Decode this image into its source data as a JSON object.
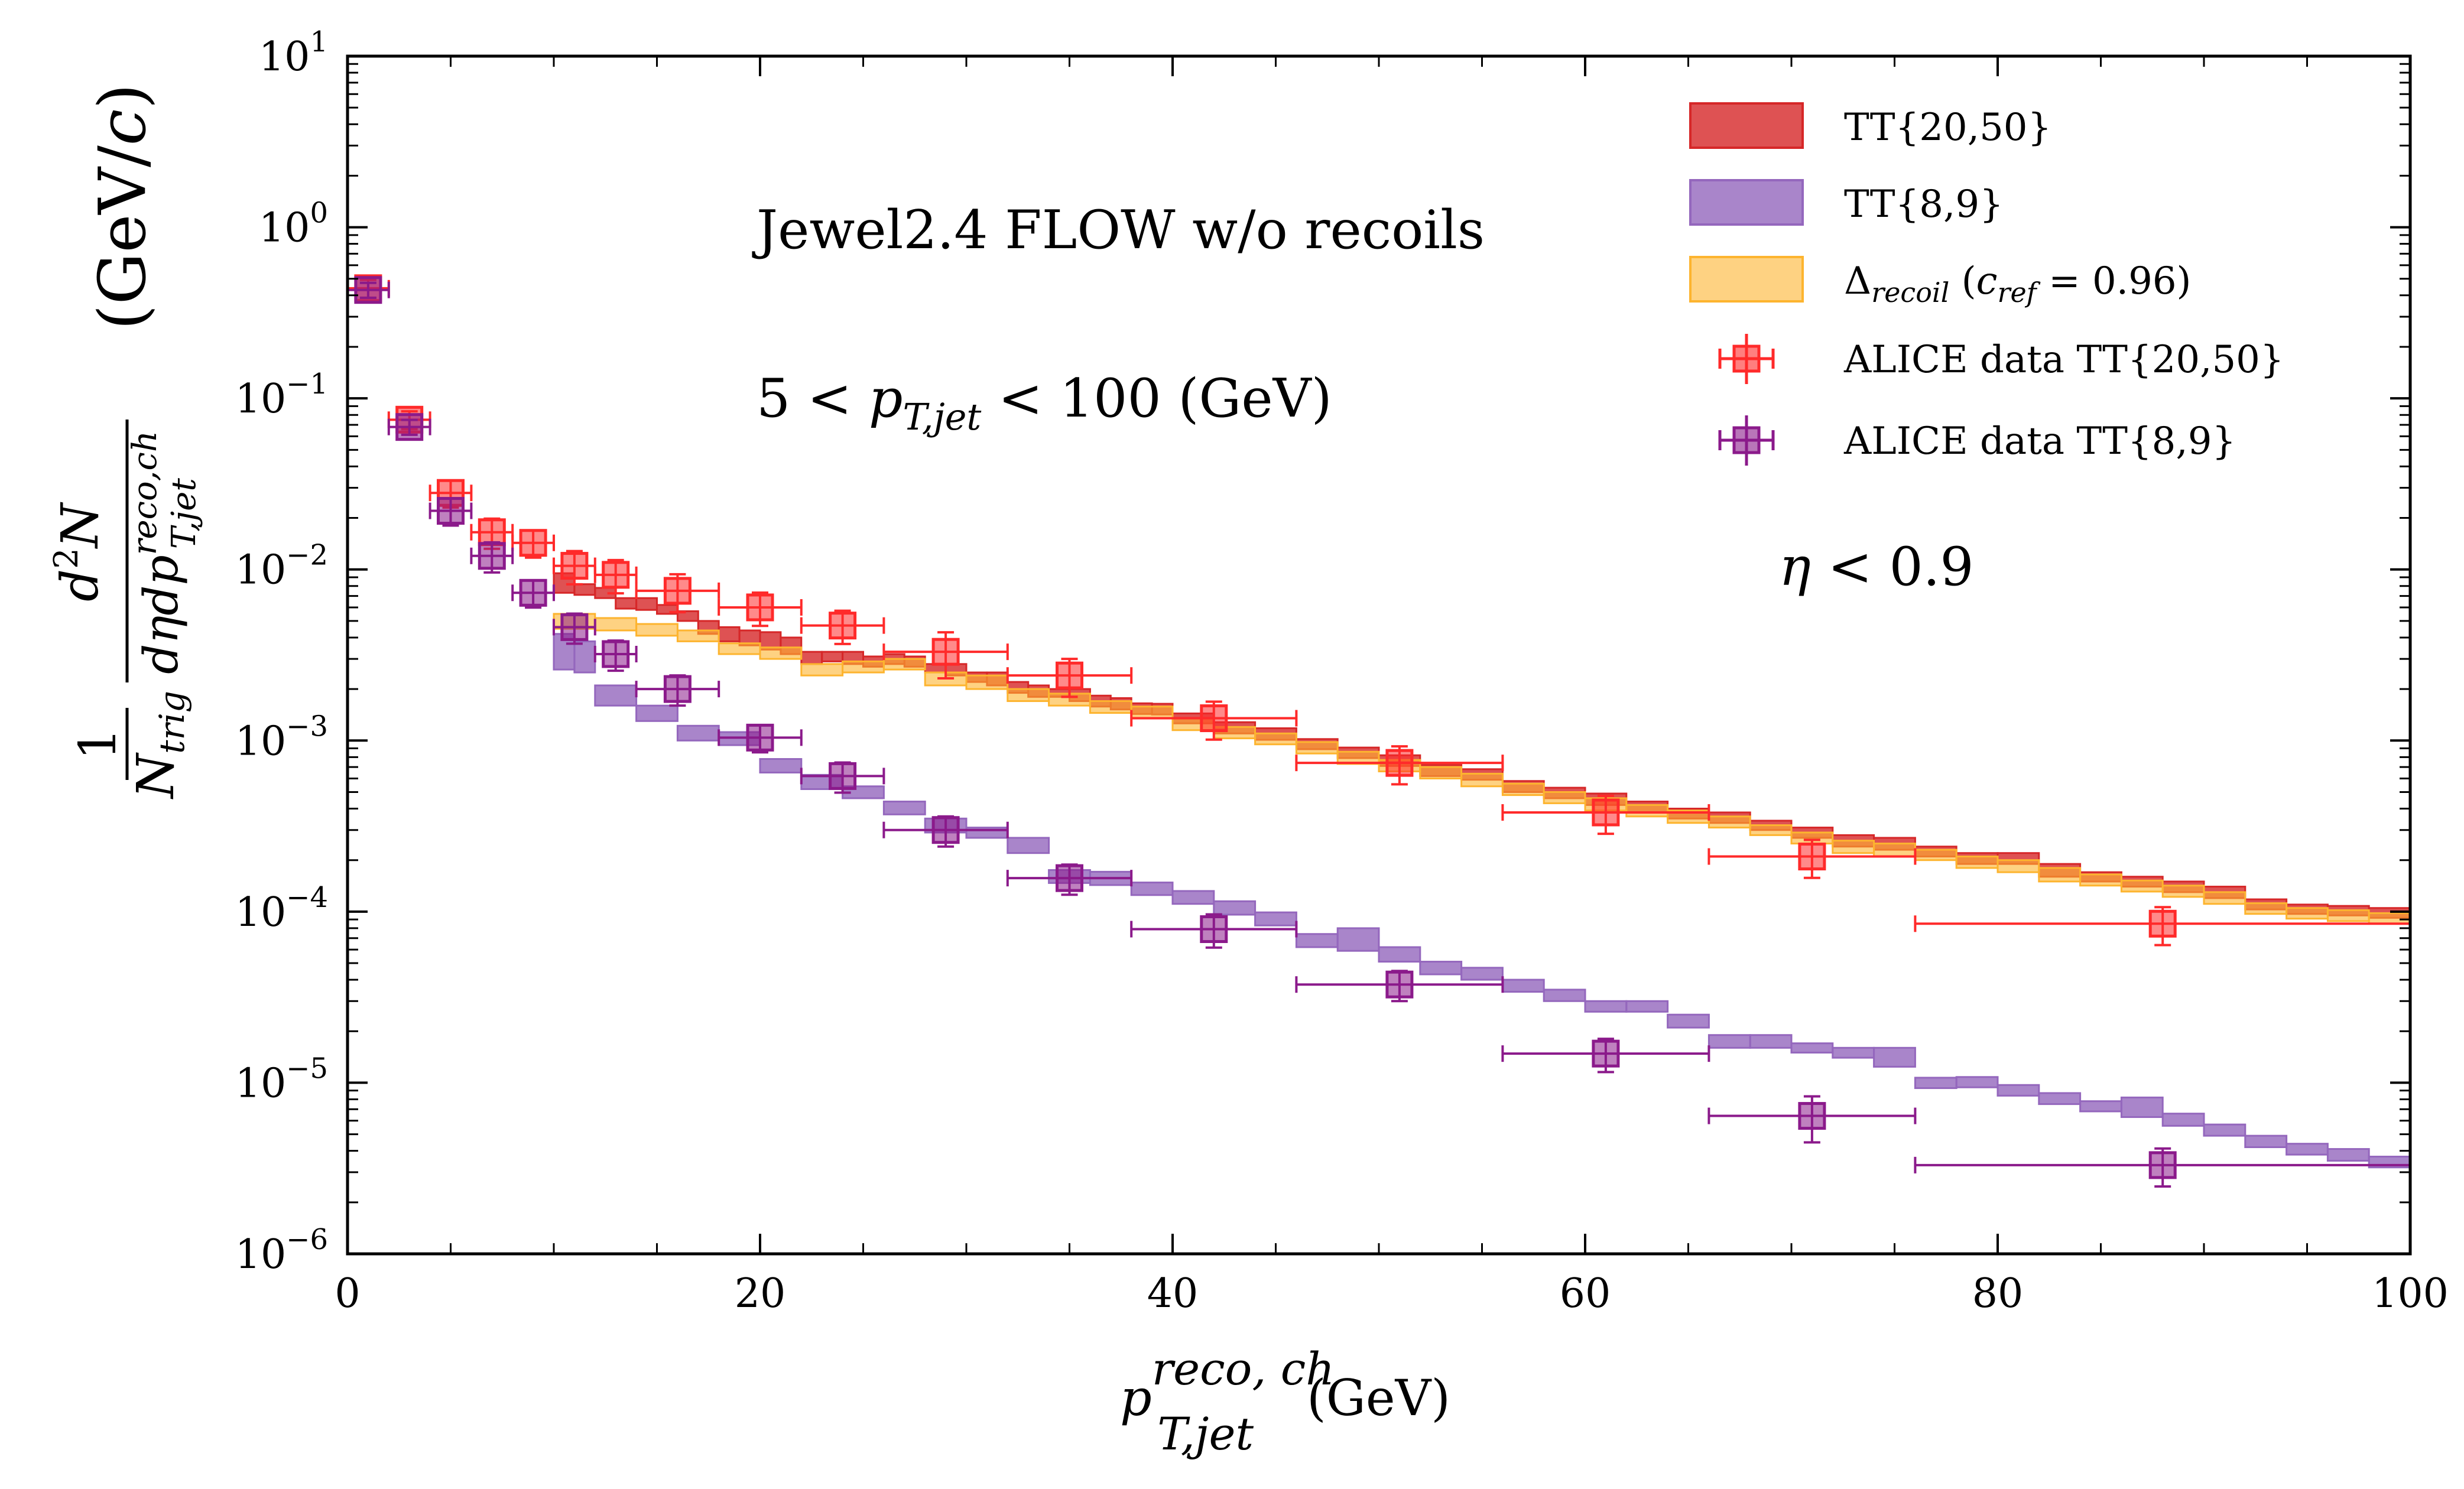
{
  "chart_data": {
    "type": "step-band-with-errorbars",
    "xlabel": "p_T,jet^reco,ch (GeV)",
    "ylabel": "1/N_trig d²N/(dη dp_T,jet^reco,ch) (GeV/c)",
    "xlim": [
      0,
      100
    ],
    "ylim": [
      1e-06,
      10
    ],
    "yscale": "log",
    "xticks": [
      "0",
      "20",
      "40",
      "60",
      "80",
      "100"
    ],
    "yticks": [
      "10^-6",
      "10^-5",
      "10^-4",
      "10^-3",
      "10^-2",
      "10^-1",
      "10^0",
      "10^1"
    ],
    "legend_position": "top-right",
    "annotations": [
      "Jewel2.4 FLOW w/o recoils",
      "5 < p_T,jet < 100 (GeV)",
      "η < 0.9"
    ],
    "bands": [
      {
        "name": "TT{20,50}",
        "color": "#d62728",
        "bins": [
          [
            10,
            11,
            0.0095,
            0.0073
          ],
          [
            11,
            12,
            0.0082,
            0.0071
          ],
          [
            12,
            13,
            0.0078,
            0.0068
          ],
          [
            13,
            14,
            0.0068,
            0.0059
          ],
          [
            14,
            15,
            0.0068,
            0.0058
          ],
          [
            15,
            16,
            0.0062,
            0.0055
          ],
          [
            16,
            17,
            0.0057,
            0.005
          ],
          [
            17,
            18,
            0.005,
            0.0042
          ],
          [
            18,
            19,
            0.0046,
            0.0038
          ],
          [
            19,
            20,
            0.0044,
            0.0036
          ],
          [
            20,
            21,
            0.0043,
            0.0034
          ],
          [
            21,
            22,
            0.004,
            0.0032
          ],
          [
            22,
            23,
            0.0033,
            0.0028
          ],
          [
            23,
            24,
            0.0033,
            0.0029
          ],
          [
            24,
            25,
            0.0033,
            0.0028
          ],
          [
            25,
            26,
            0.0031,
            0.0027
          ],
          [
            26,
            27,
            0.0032,
            0.0028
          ],
          [
            27,
            28,
            0.0031,
            0.0027
          ],
          [
            28,
            29,
            0.0028,
            0.0025
          ],
          [
            29,
            30,
            0.0028,
            0.0024
          ],
          [
            30,
            31,
            0.0025,
            0.0022
          ],
          [
            31,
            32,
            0.0025,
            0.0021
          ],
          [
            32,
            33,
            0.0022,
            0.0019
          ],
          [
            33,
            34,
            0.0021,
            0.0018
          ],
          [
            34,
            35,
            0.002,
            0.0018
          ],
          [
            35,
            36,
            0.002,
            0.0017
          ],
          [
            36,
            37,
            0.00183,
            0.00158
          ],
          [
            37,
            38,
            0.00177,
            0.00152
          ],
          [
            38,
            39,
            0.00165,
            0.00143
          ],
          [
            39,
            40,
            0.00164,
            0.00142
          ],
          [
            40,
            42,
            0.00144,
            0.00126
          ],
          [
            42,
            44,
            0.00128,
            0.0011
          ],
          [
            44,
            46,
            0.00118,
            0.00101
          ],
          [
            46,
            48,
            0.00102,
            0.00089
          ],
          [
            48,
            50,
            0.00091,
            0.00079
          ],
          [
            50,
            52,
            0.00082,
            0.00071
          ],
          [
            52,
            54,
            0.00072,
            0.00062
          ],
          [
            54,
            56,
            0.00068,
            0.00059
          ],
          [
            56,
            58,
            0.00058,
            0.0005
          ],
          [
            58,
            60,
            0.00053,
            0.00046
          ],
          [
            60,
            62,
            0.00049,
            0.00042
          ],
          [
            62,
            64,
            0.00044,
            0.00038
          ],
          [
            64,
            66,
            0.0004,
            0.00035
          ],
          [
            66,
            68,
            0.00038,
            0.00033
          ],
          [
            68,
            70,
            0.00034,
            0.0003
          ],
          [
            70,
            72,
            0.00031,
            0.00027
          ],
          [
            72,
            74,
            0.00028,
            0.00024
          ],
          [
            74,
            76,
            0.00027,
            0.00023
          ],
          [
            76,
            78,
            0.00024,
            0.00021
          ],
          [
            78,
            80,
            0.00022,
            0.00019
          ],
          [
            80,
            82,
            0.00022,
            0.00019
          ],
          [
            82,
            84,
            0.00019,
            0.00016
          ],
          [
            84,
            86,
            0.00017,
            0.00015
          ],
          [
            86,
            88,
            0.00016,
            0.00014
          ],
          [
            88,
            90,
            0.00015,
            0.00013
          ],
          [
            90,
            92,
            0.00014,
            0.00012
          ],
          [
            92,
            94,
            0.000118,
            0.000103
          ],
          [
            94,
            96,
            0.00011,
            9.7e-05
          ],
          [
            96,
            98,
            0.000108,
            9.5e-05
          ],
          [
            98,
            100,
            0.000105,
            9.2e-05
          ]
        ]
      },
      {
        "name": "TT{8,9}",
        "color": "#9467bd",
        "bins": [
          [
            10,
            11,
            0.0042,
            0.0026
          ],
          [
            11,
            12,
            0.0038,
            0.0025
          ],
          [
            12,
            14,
            0.0021,
            0.0016
          ],
          [
            14,
            16,
            0.0016,
            0.0013
          ],
          [
            16,
            18,
            0.00122,
            0.001
          ],
          [
            18,
            20,
            0.00112,
            0.00094
          ],
          [
            20,
            22,
            0.00078,
            0.00065
          ],
          [
            22,
            24,
            0.00063,
            0.00052
          ],
          [
            24,
            26,
            0.00054,
            0.00046
          ],
          [
            26,
            28,
            0.00044,
            0.00037
          ],
          [
            28,
            30,
            0.00035,
            0.00029
          ],
          [
            30,
            32,
            0.00031,
            0.00027
          ],
          [
            32,
            34,
            0.00027,
            0.00022
          ],
          [
            34,
            36,
            0.000175,
            0.000147
          ],
          [
            36,
            38,
            0.000171,
            0.000143
          ],
          [
            38,
            40,
            0.000148,
            0.000125
          ],
          [
            40,
            42,
            0.000132,
            0.000111
          ],
          [
            42,
            44,
            0.000115,
            9.6e-05
          ],
          [
            44,
            46,
            9.9e-05,
            8.3e-05
          ],
          [
            46,
            48,
            7.4e-05,
            6.2e-05
          ],
          [
            48,
            50,
            8e-05,
            5.9e-05
          ],
          [
            50,
            52,
            6.2e-05,
            5.1e-05
          ],
          [
            52,
            54,
            5.1e-05,
            4.3e-05
          ],
          [
            54,
            56,
            4.7e-05,
            4e-05
          ],
          [
            56,
            58,
            4e-05,
            3.4e-05
          ],
          [
            58,
            60,
            3.5e-05,
            3e-05
          ],
          [
            60,
            62,
            3e-05,
            2.6e-05
          ],
          [
            62,
            64,
            3e-05,
            2.6e-05
          ],
          [
            64,
            66,
            2.5e-05,
            2.1e-05
          ],
          [
            66,
            68,
            1.9e-05,
            1.6e-05
          ],
          [
            68,
            70,
            1.9e-05,
            1.6e-05
          ],
          [
            70,
            72,
            1.7e-05,
            1.5e-05
          ],
          [
            72,
            74,
            1.6e-05,
            1.4e-05
          ],
          [
            74,
            76,
            1.6e-05,
            1.24e-05
          ],
          [
            76,
            78,
            1.07e-05,
            9.3e-06
          ],
          [
            78,
            80,
            1.08e-05,
            9.4e-06
          ],
          [
            80,
            82,
            9.7e-06,
            8.4e-06
          ],
          [
            82,
            84,
            8.7e-06,
            7.5e-06
          ],
          [
            84,
            86,
            7.8e-06,
            6.8e-06
          ],
          [
            86,
            88,
            8.2e-06,
            6.3e-06
          ],
          [
            88,
            90,
            6.6e-06,
            5.6e-06
          ],
          [
            90,
            92,
            5.7e-06,
            4.9e-06
          ],
          [
            92,
            94,
            4.9e-06,
            4.2e-06
          ],
          [
            94,
            96,
            4.4e-06,
            3.8e-06
          ],
          [
            96,
            98,
            4.1e-06,
            3.5e-06
          ],
          [
            98,
            100,
            3.7e-06,
            3.2e-06
          ]
        ]
      },
      {
        "name": "Δ_recoil (c_ref = 0.96)",
        "color": "#fdb42f",
        "bins": [
          [
            10,
            12,
            0.0055,
            0.0045
          ],
          [
            12,
            14,
            0.0052,
            0.0044
          ],
          [
            14,
            16,
            0.0048,
            0.0041
          ],
          [
            16,
            18,
            0.0044,
            0.0038
          ],
          [
            18,
            20,
            0.0037,
            0.0032
          ],
          [
            20,
            22,
            0.0035,
            0.003
          ],
          [
            22,
            24,
            0.0028,
            0.0024
          ],
          [
            24,
            26,
            0.0029,
            0.0025
          ],
          [
            26,
            28,
            0.003,
            0.0026
          ],
          [
            28,
            30,
            0.0025,
            0.0021
          ],
          [
            30,
            32,
            0.0024,
            0.002
          ],
          [
            32,
            34,
            0.002,
            0.0017
          ],
          [
            34,
            36,
            0.00188,
            0.0016
          ],
          [
            36,
            38,
            0.0017,
            0.00145
          ],
          [
            38,
            40,
            0.00158,
            0.00135
          ],
          [
            40,
            42,
            0.00135,
            0.00115
          ],
          [
            42,
            44,
            0.0012,
            0.00103
          ],
          [
            44,
            46,
            0.0011,
            0.00095
          ],
          [
            46,
            48,
            0.00098,
            0.00084
          ],
          [
            48,
            50,
            0.00086,
            0.00073
          ],
          [
            50,
            52,
            0.00077,
            0.00066
          ],
          [
            52,
            54,
            0.0007,
            0.0006
          ],
          [
            54,
            56,
            0.00064,
            0.00054
          ],
          [
            56,
            58,
            0.00056,
            0.00048
          ],
          [
            58,
            60,
            0.0005,
            0.00043
          ],
          [
            60,
            62,
            0.00046,
            0.00039
          ],
          [
            62,
            64,
            0.00042,
            0.00036
          ],
          [
            64,
            66,
            0.00039,
            0.00033
          ],
          [
            66,
            68,
            0.00036,
            0.00031
          ],
          [
            68,
            70,
            0.00032,
            0.00028
          ],
          [
            70,
            72,
            0.00029,
            0.00025
          ],
          [
            72,
            74,
            0.00026,
            0.00022
          ],
          [
            74,
            76,
            0.00025,
            0.00021
          ],
          [
            76,
            78,
            0.00023,
            0.0002
          ],
          [
            78,
            80,
            0.00021,
            0.00018
          ],
          [
            80,
            82,
            0.0002,
            0.00017
          ],
          [
            82,
            84,
            0.00018,
            0.00015
          ],
          [
            84,
            86,
            0.000165,
            0.000142
          ],
          [
            86,
            88,
            0.000152,
            0.000131
          ],
          [
            88,
            90,
            0.000142,
            0.000122
          ],
          [
            90,
            92,
            0.00013,
            0.000111
          ],
          [
            92,
            94,
            0.000112,
            9.7e-05
          ],
          [
            94,
            96,
            0.000105,
            9.1e-05
          ],
          [
            96,
            98,
            0.000102,
            8.8e-05
          ],
          [
            98,
            100,
            9.8e-05,
            8.5e-05
          ]
        ]
      }
    ],
    "points": [
      {
        "name": "ALICE data TT{20,50}",
        "color": "#ff2a2a",
        "x": [
          1,
          3,
          5,
          7,
          9,
          11,
          13,
          16,
          20,
          24,
          29,
          35,
          42,
          51,
          61,
          71,
          88
        ],
        "xlo": [
          0,
          2,
          4,
          6,
          8,
          10,
          12,
          14,
          18,
          22,
          26,
          32,
          38,
          46,
          56,
          66,
          76
        ],
        "xhi": [
          2,
          4,
          6,
          8,
          10,
          12,
          14,
          18,
          22,
          26,
          32,
          38,
          46,
          56,
          66,
          76,
          100
        ],
        "y": [
          0.44,
          0.075,
          0.028,
          0.0165,
          0.0143,
          0.0105,
          0.0093,
          0.0075,
          0.006,
          0.0047,
          0.0033,
          0.0024,
          0.00135,
          0.00074,
          0.00038,
          0.00021,
          8.5e-05
        ],
        "yerr_rel": [
          0.12,
          0.12,
          0.18,
          0.2,
          0.18,
          0.22,
          0.22,
          0.25,
          0.22,
          0.22,
          0.3,
          0.25,
          0.25,
          0.25,
          0.25,
          0.25,
          0.25
        ]
      },
      {
        "name": "ALICE data TT{8,9}",
        "color": "#8b1a8b",
        "x": [
          1,
          3,
          5,
          7,
          9,
          11,
          13,
          16,
          20,
          24,
          29,
          35,
          42,
          51,
          61,
          71,
          88
        ],
        "xlo": [
          0,
          2,
          4,
          6,
          8,
          10,
          12,
          14,
          18,
          22,
          26,
          32,
          38,
          46,
          56,
          66,
          76
        ],
        "xhi": [
          2,
          4,
          6,
          8,
          10,
          12,
          14,
          18,
          22,
          26,
          32,
          38,
          46,
          56,
          66,
          76,
          100
        ],
        "y": [
          0.43,
          0.068,
          0.022,
          0.012,
          0.0073,
          0.0046,
          0.0032,
          0.002,
          0.00104,
          0.00062,
          0.0003,
          0.000157,
          7.9e-05,
          3.75e-05,
          1.48e-05,
          6.4e-06,
          3.3e-06
        ],
        "yerr_rel": [
          0.1,
          0.1,
          0.18,
          0.2,
          0.18,
          0.2,
          0.2,
          0.2,
          0.18,
          0.2,
          0.2,
          0.2,
          0.22,
          0.2,
          0.22,
          0.3,
          0.25
        ]
      }
    ]
  }
}
